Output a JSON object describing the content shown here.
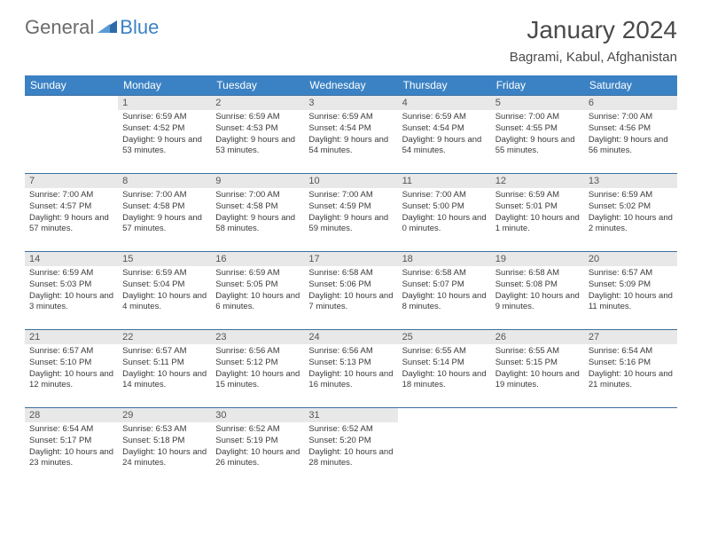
{
  "logo": {
    "text1": "General",
    "text2": "Blue"
  },
  "title": "January 2024",
  "location": "Bagrami, Kabul, Afghanistan",
  "colors": {
    "header_bg": "#3b82c4",
    "header_text": "#ffffff",
    "daynum_bg": "#e8e8e8",
    "row_border": "#3b6fa0",
    "body_text": "#3a3a3a",
    "logo_gray": "#6b6b6b",
    "logo_blue": "#3b82c4"
  },
  "weekdays": [
    "Sunday",
    "Monday",
    "Tuesday",
    "Wednesday",
    "Thursday",
    "Friday",
    "Saturday"
  ],
  "weeks": [
    [
      {
        "day": "",
        "sunrise": "",
        "sunset": "",
        "daylight": ""
      },
      {
        "day": "1",
        "sunrise": "Sunrise: 6:59 AM",
        "sunset": "Sunset: 4:52 PM",
        "daylight": "Daylight: 9 hours and 53 minutes."
      },
      {
        "day": "2",
        "sunrise": "Sunrise: 6:59 AM",
        "sunset": "Sunset: 4:53 PM",
        "daylight": "Daylight: 9 hours and 53 minutes."
      },
      {
        "day": "3",
        "sunrise": "Sunrise: 6:59 AM",
        "sunset": "Sunset: 4:54 PM",
        "daylight": "Daylight: 9 hours and 54 minutes."
      },
      {
        "day": "4",
        "sunrise": "Sunrise: 6:59 AM",
        "sunset": "Sunset: 4:54 PM",
        "daylight": "Daylight: 9 hours and 54 minutes."
      },
      {
        "day": "5",
        "sunrise": "Sunrise: 7:00 AM",
        "sunset": "Sunset: 4:55 PM",
        "daylight": "Daylight: 9 hours and 55 minutes."
      },
      {
        "day": "6",
        "sunrise": "Sunrise: 7:00 AM",
        "sunset": "Sunset: 4:56 PM",
        "daylight": "Daylight: 9 hours and 56 minutes."
      }
    ],
    [
      {
        "day": "7",
        "sunrise": "Sunrise: 7:00 AM",
        "sunset": "Sunset: 4:57 PM",
        "daylight": "Daylight: 9 hours and 57 minutes."
      },
      {
        "day": "8",
        "sunrise": "Sunrise: 7:00 AM",
        "sunset": "Sunset: 4:58 PM",
        "daylight": "Daylight: 9 hours and 57 minutes."
      },
      {
        "day": "9",
        "sunrise": "Sunrise: 7:00 AM",
        "sunset": "Sunset: 4:58 PM",
        "daylight": "Daylight: 9 hours and 58 minutes."
      },
      {
        "day": "10",
        "sunrise": "Sunrise: 7:00 AM",
        "sunset": "Sunset: 4:59 PM",
        "daylight": "Daylight: 9 hours and 59 minutes."
      },
      {
        "day": "11",
        "sunrise": "Sunrise: 7:00 AM",
        "sunset": "Sunset: 5:00 PM",
        "daylight": "Daylight: 10 hours and 0 minutes."
      },
      {
        "day": "12",
        "sunrise": "Sunrise: 6:59 AM",
        "sunset": "Sunset: 5:01 PM",
        "daylight": "Daylight: 10 hours and 1 minute."
      },
      {
        "day": "13",
        "sunrise": "Sunrise: 6:59 AM",
        "sunset": "Sunset: 5:02 PM",
        "daylight": "Daylight: 10 hours and 2 minutes."
      }
    ],
    [
      {
        "day": "14",
        "sunrise": "Sunrise: 6:59 AM",
        "sunset": "Sunset: 5:03 PM",
        "daylight": "Daylight: 10 hours and 3 minutes."
      },
      {
        "day": "15",
        "sunrise": "Sunrise: 6:59 AM",
        "sunset": "Sunset: 5:04 PM",
        "daylight": "Daylight: 10 hours and 4 minutes."
      },
      {
        "day": "16",
        "sunrise": "Sunrise: 6:59 AM",
        "sunset": "Sunset: 5:05 PM",
        "daylight": "Daylight: 10 hours and 6 minutes."
      },
      {
        "day": "17",
        "sunrise": "Sunrise: 6:58 AM",
        "sunset": "Sunset: 5:06 PM",
        "daylight": "Daylight: 10 hours and 7 minutes."
      },
      {
        "day": "18",
        "sunrise": "Sunrise: 6:58 AM",
        "sunset": "Sunset: 5:07 PM",
        "daylight": "Daylight: 10 hours and 8 minutes."
      },
      {
        "day": "19",
        "sunrise": "Sunrise: 6:58 AM",
        "sunset": "Sunset: 5:08 PM",
        "daylight": "Daylight: 10 hours and 9 minutes."
      },
      {
        "day": "20",
        "sunrise": "Sunrise: 6:57 AM",
        "sunset": "Sunset: 5:09 PM",
        "daylight": "Daylight: 10 hours and 11 minutes."
      }
    ],
    [
      {
        "day": "21",
        "sunrise": "Sunrise: 6:57 AM",
        "sunset": "Sunset: 5:10 PM",
        "daylight": "Daylight: 10 hours and 12 minutes."
      },
      {
        "day": "22",
        "sunrise": "Sunrise: 6:57 AM",
        "sunset": "Sunset: 5:11 PM",
        "daylight": "Daylight: 10 hours and 14 minutes."
      },
      {
        "day": "23",
        "sunrise": "Sunrise: 6:56 AM",
        "sunset": "Sunset: 5:12 PM",
        "daylight": "Daylight: 10 hours and 15 minutes."
      },
      {
        "day": "24",
        "sunrise": "Sunrise: 6:56 AM",
        "sunset": "Sunset: 5:13 PM",
        "daylight": "Daylight: 10 hours and 16 minutes."
      },
      {
        "day": "25",
        "sunrise": "Sunrise: 6:55 AM",
        "sunset": "Sunset: 5:14 PM",
        "daylight": "Daylight: 10 hours and 18 minutes."
      },
      {
        "day": "26",
        "sunrise": "Sunrise: 6:55 AM",
        "sunset": "Sunset: 5:15 PM",
        "daylight": "Daylight: 10 hours and 19 minutes."
      },
      {
        "day": "27",
        "sunrise": "Sunrise: 6:54 AM",
        "sunset": "Sunset: 5:16 PM",
        "daylight": "Daylight: 10 hours and 21 minutes."
      }
    ],
    [
      {
        "day": "28",
        "sunrise": "Sunrise: 6:54 AM",
        "sunset": "Sunset: 5:17 PM",
        "daylight": "Daylight: 10 hours and 23 minutes."
      },
      {
        "day": "29",
        "sunrise": "Sunrise: 6:53 AM",
        "sunset": "Sunset: 5:18 PM",
        "daylight": "Daylight: 10 hours and 24 minutes."
      },
      {
        "day": "30",
        "sunrise": "Sunrise: 6:52 AM",
        "sunset": "Sunset: 5:19 PM",
        "daylight": "Daylight: 10 hours and 26 minutes."
      },
      {
        "day": "31",
        "sunrise": "Sunrise: 6:52 AM",
        "sunset": "Sunset: 5:20 PM",
        "daylight": "Daylight: 10 hours and 28 minutes."
      },
      {
        "day": "",
        "sunrise": "",
        "sunset": "",
        "daylight": ""
      },
      {
        "day": "",
        "sunrise": "",
        "sunset": "",
        "daylight": ""
      },
      {
        "day": "",
        "sunrise": "",
        "sunset": "",
        "daylight": ""
      }
    ]
  ]
}
